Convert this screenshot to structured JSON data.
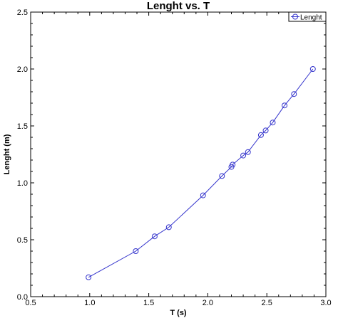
{
  "chart_data": {
    "type": "line",
    "title": "Lenght vs. T",
    "xlabel": "T (s)",
    "ylabel": "Lenght (m)",
    "xlim": [
      0.5,
      3.0
    ],
    "ylim": [
      0.0,
      2.5
    ],
    "xticks": [
      "0.5",
      "1.0",
      "1.5",
      "2.0",
      "2.5",
      "3.0"
    ],
    "yticks": [
      "0.0",
      "0.5",
      "1.0",
      "1.5",
      "2.0",
      "2.5"
    ],
    "grid": false,
    "legend": {
      "placement": "top-right",
      "entries": [
        "Lenght"
      ]
    },
    "series": [
      {
        "name": "Lenght",
        "color": "#3333cc",
        "marker": "open-circle",
        "x": [
          0.99,
          1.39,
          1.55,
          1.67,
          1.96,
          2.12,
          2.2,
          2.21,
          2.3,
          2.34,
          2.45,
          2.49,
          2.55,
          2.65,
          2.73,
          2.89
        ],
        "y": [
          0.17,
          0.4,
          0.53,
          0.61,
          0.89,
          1.06,
          1.14,
          1.16,
          1.24,
          1.27,
          1.42,
          1.46,
          1.53,
          1.68,
          1.78,
          2.0
        ]
      }
    ]
  }
}
